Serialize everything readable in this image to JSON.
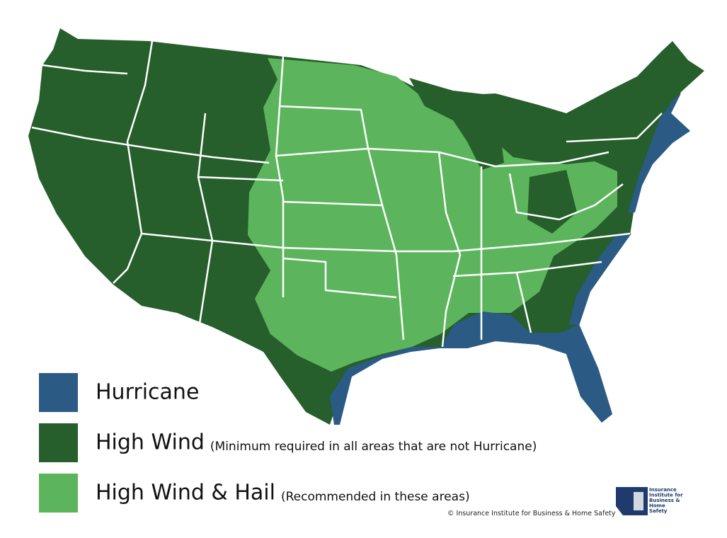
{
  "legend": [
    {
      "label": "Hurricane",
      "color": "#2b5a84"
    },
    {
      "label": "High Wind",
      "note": "(Minimum required in all areas that are not Hurricane)",
      "color": "#265e2c"
    },
    {
      "label": "High Wind & Hail",
      "note": "(Recommended in these areas)",
      "color": "#5cb55c"
    }
  ],
  "copyright": "© Insurance Institute for Business & Home Safety",
  "logo": {
    "lines": [
      "Insurance",
      "Institute for",
      "Business &",
      "Home",
      "Safety"
    ]
  }
}
